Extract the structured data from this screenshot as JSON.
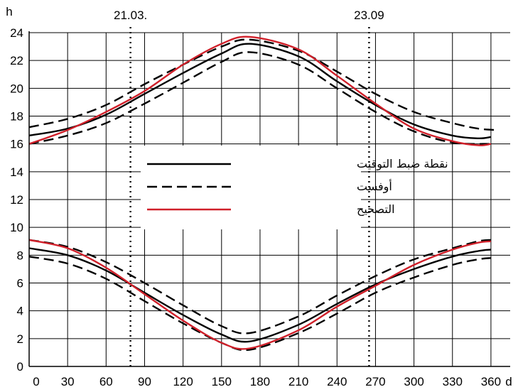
{
  "chart_data": {
    "type": "line",
    "title": "",
    "xlabel": "d",
    "ylabel": "h",
    "xlim": [
      0,
      375
    ],
    "ylim": [
      0,
      24
    ],
    "grid": true,
    "legend_placement": "center-left",
    "x_ticks": [
      "0",
      "30",
      "60",
      "90",
      "120",
      "150",
      "180",
      "210",
      "240",
      "270",
      "300",
      "330",
      "360"
    ],
    "y_ticks": [
      "0",
      "2",
      "4",
      "6",
      "8",
      "10",
      "12",
      "14",
      "16",
      "18",
      "20",
      "22",
      "24"
    ],
    "annotations": [
      {
        "label": "21.03.",
        "x": 79
      },
      {
        "label": "23.09",
        "x": 265
      }
    ],
    "legend": [
      {
        "label": "نقطة ضبط التوقيت",
        "style": "solid",
        "color": "#000000"
      },
      {
        "label": "أوفست",
        "style": "dashed",
        "color": "#000000"
      },
      {
        "label": "التصحيح",
        "style": "solid",
        "color": "#d0202a"
      }
    ],
    "series": [
      {
        "name": "نقطة ضبط التوقيت",
        "group": "upper",
        "style": "solid",
        "color": "#000000",
        "x": [
          0,
          30,
          60,
          90,
          120,
          150,
          172,
          210,
          240,
          270,
          300,
          330,
          350,
          360
        ],
        "y": [
          16.6,
          17.1,
          18.1,
          19.6,
          21.1,
          22.5,
          23.2,
          22.3,
          20.5,
          18.8,
          17.4,
          16.6,
          16.4,
          16.5
        ]
      },
      {
        "name": "أوفست",
        "group": "upper",
        "style": "dashed",
        "color": "#000000",
        "x": [
          0,
          30,
          60,
          90,
          120,
          150,
          172,
          210,
          240,
          270,
          300,
          330,
          350,
          365
        ],
        "y": [
          17.2,
          17.8,
          18.8,
          20.3,
          21.7,
          23.0,
          23.5,
          22.7,
          21.2,
          19.6,
          18.3,
          17.5,
          17.1,
          17.0
        ]
      },
      {
        "name": "أوفست",
        "group": "upper",
        "style": "dashed",
        "color": "#000000",
        "x": [
          0,
          30,
          60,
          90,
          120,
          150,
          172,
          210,
          240,
          270,
          300,
          330,
          360
        ],
        "y": [
          16.0,
          16.6,
          17.5,
          18.9,
          20.4,
          21.9,
          22.6,
          21.7,
          20.0,
          18.3,
          16.9,
          16.1,
          16.0
        ]
      },
      {
        "name": "التصحيح",
        "group": "upper",
        "style": "solid",
        "color": "#d0202a",
        "x": [
          0,
          30,
          60,
          90,
          120,
          150,
          172,
          210,
          240,
          270,
          300,
          330,
          350,
          360
        ],
        "y": [
          16.0,
          17.0,
          18.3,
          19.8,
          21.7,
          23.2,
          23.7,
          22.8,
          20.9,
          18.9,
          17.1,
          16.2,
          15.9,
          16.0
        ]
      },
      {
        "name": "نقطة ضبط التوقيت",
        "group": "lower",
        "style": "solid",
        "color": "#000000",
        "x": [
          0,
          30,
          60,
          90,
          120,
          150,
          172,
          210,
          240,
          270,
          300,
          330,
          350,
          360
        ],
        "y": [
          8.5,
          8.0,
          6.9,
          5.3,
          3.7,
          2.3,
          1.8,
          3.0,
          4.5,
          5.9,
          7.0,
          7.9,
          8.3,
          8.4
        ]
      },
      {
        "name": "أوفست",
        "group": "lower",
        "style": "dashed",
        "color": "#000000",
        "x": [
          0,
          30,
          60,
          90,
          120,
          150,
          172,
          210,
          240,
          270,
          300,
          330,
          350,
          360
        ],
        "y": [
          9.1,
          8.6,
          7.5,
          6.0,
          4.4,
          2.9,
          2.4,
          3.6,
          5.1,
          6.5,
          7.7,
          8.5,
          9.0,
          9.1
        ]
      },
      {
        "name": "أوفست",
        "group": "lower",
        "style": "dashed",
        "color": "#000000",
        "x": [
          0,
          30,
          60,
          90,
          120,
          150,
          172,
          210,
          240,
          270,
          300,
          330,
          350,
          360
        ],
        "y": [
          7.9,
          7.4,
          6.3,
          4.7,
          3.1,
          1.7,
          1.2,
          2.4,
          3.8,
          5.3,
          6.4,
          7.3,
          7.7,
          7.8
        ]
      },
      {
        "name": "التصحيح",
        "group": "lower",
        "style": "solid",
        "color": "#d0202a",
        "x": [
          0,
          30,
          60,
          90,
          120,
          150,
          172,
          210,
          240,
          270,
          300,
          330,
          350,
          360
        ],
        "y": [
          9.1,
          8.5,
          7.1,
          5.2,
          3.3,
          1.7,
          1.3,
          2.6,
          4.3,
          5.8,
          7.3,
          8.4,
          8.9,
          9.0
        ]
      }
    ]
  }
}
